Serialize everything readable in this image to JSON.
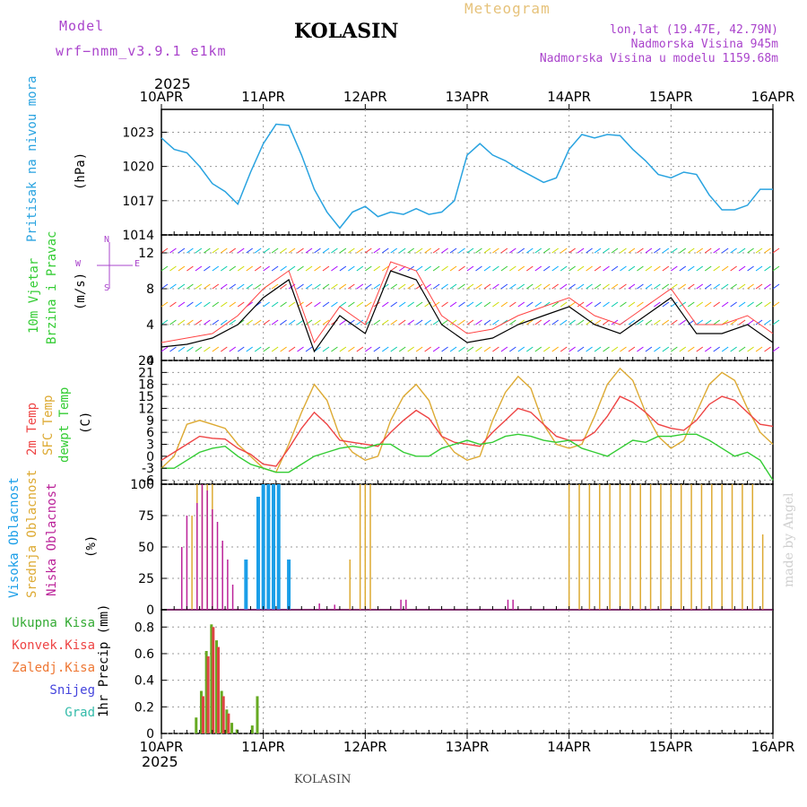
{
  "header": {
    "model_label": "Model",
    "model_value": "wrf−nmm_v3.9.1  e1km",
    "station": "KOLASIN",
    "product": "Meteogram",
    "lonlat": "lon,lat (19.47E, 42.79N)",
    "elevation": "Nadmorska Visina 945m",
    "model_elevation": "Nadmorska Visina u modelu 1159.68m",
    "year_top": "2025",
    "year_bottom": "2025",
    "footer_station": "KOLASIN",
    "credit": "made by Angel"
  },
  "colors": {
    "pressure": "#29a3e0",
    "wind_label": "#33cc33",
    "temp2m": "#ee4444",
    "sfc": "#ddaa33",
    "dewpt": "#33cc33",
    "high_cloud": "#1a9ee8",
    "mid_cloud": "#ddaa33",
    "low_cloud": "#bb2299",
    "header_purple": "#aa44cc",
    "meteogram": "#e6c27a"
  },
  "chart_data": [
    {
      "type": "line",
      "panel": "pressure",
      "ylabel_lines": [
        "Pritisak na nivou mora",
        "(hPa)"
      ],
      "ylim": [
        1014,
        1025
      ],
      "yticks": [
        1014,
        1017,
        1020,
        1023
      ],
      "x_days": [
        0,
        0.125,
        0.25,
        0.375,
        0.5,
        0.625,
        0.75,
        0.875,
        1,
        1.125,
        1.25,
        1.375,
        1.5,
        1.625,
        1.75,
        1.875,
        2,
        2.125,
        2.25,
        2.375,
        2.5,
        2.625,
        2.75,
        2.875,
        3,
        3.125,
        3.25,
        3.375,
        3.5,
        3.625,
        3.75,
        3.875,
        4,
        4.125,
        4.25,
        4.375,
        4.5,
        4.625,
        4.75,
        4.875,
        5,
        5.125,
        5.25,
        5.375,
        5.5,
        5.625,
        5.75,
        5.875,
        6
      ],
      "series": [
        {
          "values": [
            1022.5,
            1021.5,
            1021.2,
            1020.0,
            1018.5,
            1017.8,
            1016.7,
            1019.5,
            1022.0,
            1023.7,
            1023.6,
            1021.0,
            1018.0,
            1016.0,
            1014.6,
            1016.0,
            1016.5,
            1015.6,
            1016.0,
            1015.8,
            1016.3,
            1015.8,
            1016.0,
            1017.0,
            1021.0,
            1022.0,
            1021.0,
            1020.5,
            1019.8,
            1019.2,
            1018.6,
            1019.0,
            1021.5,
            1022.8,
            1022.5,
            1022.8,
            1022.7,
            1021.5,
            1020.5,
            1019.3,
            1019.0,
            1019.5,
            1019.3,
            1017.5,
            1016.2,
            1016.2,
            1016.6,
            1018.0,
            1018.0
          ]
        }
      ]
    },
    {
      "type": "line",
      "panel": "wind",
      "ylabel_lines": [
        "10m Vjetar",
        "Brzina i Pravac",
        "(m/s)"
      ],
      "ylim": [
        0,
        14
      ],
      "yticks": [
        0,
        4,
        8,
        12
      ],
      "x_days": [
        0,
        0.25,
        0.5,
        0.75,
        1,
        1.25,
        1.5,
        1.75,
        2,
        2.25,
        2.5,
        2.75,
        3,
        3.25,
        3.5,
        3.75,
        4,
        4.25,
        4.5,
        4.75,
        5,
        5.25,
        5.5,
        5.75,
        6
      ],
      "series": [
        {
          "values": [
            1.5,
            1.8,
            2.5,
            4,
            7,
            9,
            1,
            5,
            3,
            10,
            9,
            4,
            2,
            2.5,
            4,
            5,
            6,
            4,
            3,
            5,
            7,
            3,
            3,
            4,
            2
          ]
        },
        {
          "values": [
            2,
            2.5,
            3,
            5,
            8,
            10,
            2,
            6,
            4,
            11,
            10,
            5,
            3,
            3.5,
            5,
            6,
            7,
            5,
            4,
            6,
            8,
            4,
            4,
            5,
            3
          ]
        }
      ],
      "direction_compass": [
        "N",
        "E",
        "S",
        "W"
      ]
    },
    {
      "type": "line",
      "panel": "temperature",
      "ylabel_lines": [
        "2m Temp",
        "SFC Temp",
        "dewpt Temp",
        "(C)"
      ],
      "ylim": [
        -7,
        24
      ],
      "yticks": [
        -6,
        -3,
        0,
        3,
        6,
        9,
        12,
        15,
        18,
        21,
        24
      ],
      "x_days": [
        0,
        0.125,
        0.25,
        0.375,
        0.5,
        0.625,
        0.75,
        0.875,
        1,
        1.125,
        1.25,
        1.375,
        1.5,
        1.625,
        1.75,
        1.875,
        2,
        2.125,
        2.25,
        2.375,
        2.5,
        2.625,
        2.75,
        2.875,
        3,
        3.125,
        3.25,
        3.375,
        3.5,
        3.625,
        3.75,
        3.875,
        4,
        4.125,
        4.25,
        4.375,
        4.5,
        4.625,
        4.75,
        4.875,
        5,
        5.125,
        5.25,
        5.375,
        5.5,
        5.625,
        5.75,
        5.875,
        6
      ],
      "series": [
        {
          "name": "2m Temp",
          "values": [
            -1,
            1,
            3,
            5,
            4.5,
            4.3,
            2,
            0.5,
            -2,
            -2.5,
            2,
            7,
            11,
            8,
            4,
            3.5,
            3,
            2.5,
            6,
            9,
            11.5,
            9.5,
            5,
            3.5,
            3,
            2.5,
            6,
            9,
            12,
            11,
            8,
            5,
            4,
            4,
            6,
            10,
            15,
            13.5,
            11,
            8,
            7,
            6.5,
            9,
            13,
            15,
            14,
            11,
            8,
            7.5
          ]
        },
        {
          "name": "SFC Temp",
          "values": [
            -3,
            0,
            8,
            9,
            8,
            7,
            3,
            0,
            -3,
            -4,
            3,
            11,
            18,
            14,
            5,
            1,
            -1,
            0,
            9,
            15,
            18,
            14,
            5,
            1,
            -1,
            0,
            9,
            16,
            20,
            17,
            8,
            3,
            2,
            3,
            10,
            18,
            22,
            19,
            11,
            5,
            2,
            4,
            11,
            18,
            21,
            19,
            12,
            6,
            3
          ]
        },
        {
          "name": "dewpt Temp",
          "values": [
            -3,
            -3,
            -1,
            1,
            2,
            2.5,
            0,
            -2,
            -3,
            -4,
            -4,
            -2,
            0,
            1,
            2,
            2.5,
            2,
            3,
            3,
            1,
            0,
            0,
            2,
            3,
            4,
            3,
            3.5,
            5,
            5.5,
            5,
            4,
            3.5,
            4,
            2,
            1,
            0,
            2,
            4,
            3.5,
            5,
            5,
            5.5,
            5.5,
            4,
            2,
            0,
            1,
            -1,
            -6
          ]
        }
      ]
    },
    {
      "type": "bar",
      "panel": "cloud",
      "ylabel_lines": [
        "Visoka Oblacnost",
        "Srednja Oblacnost",
        "Niska Oblacnost",
        "(%)"
      ],
      "ylim": [
        0,
        100
      ],
      "yticks": [
        0,
        25,
        50,
        75,
        100
      ],
      "series": [
        {
          "name": "Visoka Oblacnost",
          "x_days": [
            0.83,
            0.95,
            1.0,
            1.05,
            1.1,
            1.15,
            1.25
          ],
          "values": [
            40,
            90,
            100,
            100,
            100,
            100,
            40
          ]
        },
        {
          "name": "Srednja Oblacnost",
          "x_days": [
            0.3,
            0.35,
            0.4,
            0.45,
            0.5,
            1.85,
            1.95,
            2.0,
            2.05,
            4.0,
            4.1,
            4.2,
            4.3,
            4.4,
            4.5,
            4.6,
            4.7,
            4.8,
            4.9,
            5.0,
            5.1,
            5.2,
            5.3,
            5.4,
            5.5,
            5.6,
            5.7,
            5.8,
            5.9
          ],
          "values": [
            75,
            100,
            100,
            100,
            100,
            40,
            100,
            100,
            100,
            100,
            100,
            100,
            100,
            100,
            100,
            100,
            100,
            100,
            100,
            100,
            100,
            100,
            100,
            100,
            100,
            100,
            100,
            100,
            60
          ]
        },
        {
          "name": "Niska Oblacnost",
          "x_days": [
            0.2,
            0.25,
            0.35,
            0.4,
            0.45,
            0.5,
            0.55,
            0.6,
            0.65,
            0.7,
            1.55,
            1.7,
            2.35,
            2.4,
            3.4,
            3.45
          ],
          "values": [
            50,
            75,
            85,
            100,
            95,
            80,
            70,
            55,
            40,
            20,
            5,
            4,
            8,
            8,
            8,
            8
          ]
        }
      ]
    },
    {
      "type": "bar",
      "panel": "precip",
      "ylabel_lines": [
        "1hr Precip (mm)"
      ],
      "legend": [
        "Ukupna Kisa",
        "Konvek.Kisa",
        "Zaledj.Kisa",
        "Snijeg",
        "Grad"
      ],
      "ylim": [
        0,
        0.93
      ],
      "yticks": [
        0,
        0.2,
        0.4,
        0.6,
        0.8
      ],
      "series": [
        {
          "name": "Ukupna Kisa",
          "x_days": [
            0.35,
            0.4,
            0.45,
            0.5,
            0.55,
            0.6,
            0.65,
            0.7,
            0.75,
            0.9,
            0.95
          ],
          "values": [
            0.12,
            0.32,
            0.62,
            0.82,
            0.7,
            0.32,
            0.18,
            0.08,
            0.03,
            0.06,
            0.28
          ]
        },
        {
          "name": "Konvek.Kisa",
          "x_days": [
            0.4,
            0.45,
            0.5,
            0.55,
            0.6,
            0.65
          ],
          "values": [
            0.28,
            0.58,
            0.8,
            0.65,
            0.28,
            0.15
          ]
        }
      ]
    }
  ],
  "xaxis": {
    "tick_labels": [
      "10APR",
      "11APR",
      "12APR",
      "13APR",
      "14APR",
      "15APR",
      "16APR"
    ]
  }
}
